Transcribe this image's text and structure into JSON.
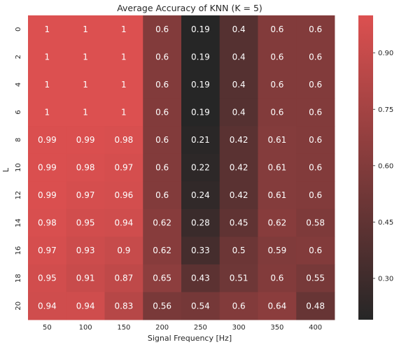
{
  "chart_data": {
    "type": "heatmap",
    "title": "Average Accuracy of KNN (K = 5)",
    "xlabel": "Signal Frequency [Hz]",
    "ylabel": "L",
    "x": [
      "50",
      "100",
      "150",
      "200",
      "250",
      "300",
      "350",
      "400"
    ],
    "y": [
      "0",
      "2",
      "4",
      "6",
      "8",
      "10",
      "12",
      "14",
      "16",
      "18",
      "20"
    ],
    "values": [
      [
        "1",
        "1",
        "1",
        "0.6",
        "0.19",
        "0.4",
        "0.6",
        "0.6"
      ],
      [
        "1",
        "1",
        "1",
        "0.6",
        "0.19",
        "0.4",
        "0.6",
        "0.6"
      ],
      [
        "1",
        "1",
        "1",
        "0.6",
        "0.19",
        "0.4",
        "0.6",
        "0.6"
      ],
      [
        "1",
        "1",
        "1",
        "0.6",
        "0.19",
        "0.4",
        "0.6",
        "0.6"
      ],
      [
        "0.99",
        "0.99",
        "0.98",
        "0.6",
        "0.21",
        "0.42",
        "0.61",
        "0.6"
      ],
      [
        "0.99",
        "0.98",
        "0.97",
        "0.6",
        "0.22",
        "0.42",
        "0.61",
        "0.6"
      ],
      [
        "0.99",
        "0.97",
        "0.96",
        "0.6",
        "0.24",
        "0.42",
        "0.61",
        "0.6"
      ],
      [
        "0.98",
        "0.95",
        "0.94",
        "0.62",
        "0.28",
        "0.45",
        "0.62",
        "0.58"
      ],
      [
        "0.97",
        "0.93",
        "0.9",
        "0.62",
        "0.33",
        "0.5",
        "0.59",
        "0.6"
      ],
      [
        "0.95",
        "0.91",
        "0.87",
        "0.65",
        "0.43",
        "0.51",
        "0.6",
        "0.55"
      ],
      [
        "0.94",
        "0.94",
        "0.83",
        "0.56",
        "0.54",
        "0.6",
        "0.64",
        "0.48"
      ]
    ],
    "colorbar": {
      "ticks": [
        "0.90",
        "0.75",
        "0.60",
        "0.45",
        "0.30"
      ],
      "range": [
        0.19,
        1.0
      ],
      "colors": {
        "low": "#262626",
        "high": "#dc5050"
      }
    },
    "grid": false
  }
}
